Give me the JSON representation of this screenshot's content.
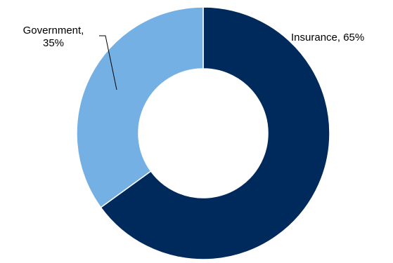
{
  "chart_data": {
    "type": "pie",
    "donut": true,
    "categories": [
      "Insurance",
      "Government"
    ],
    "values": [
      65,
      35
    ],
    "units": "%",
    "colors": [
      "#002a5c",
      "#75b0e4"
    ],
    "labels": [
      {
        "lines": [
          "Insurance, 65%"
        ]
      },
      {
        "lines": [
          "Government,",
          "35%"
        ]
      }
    ],
    "title": "",
    "legend": "none",
    "grid": false
  }
}
